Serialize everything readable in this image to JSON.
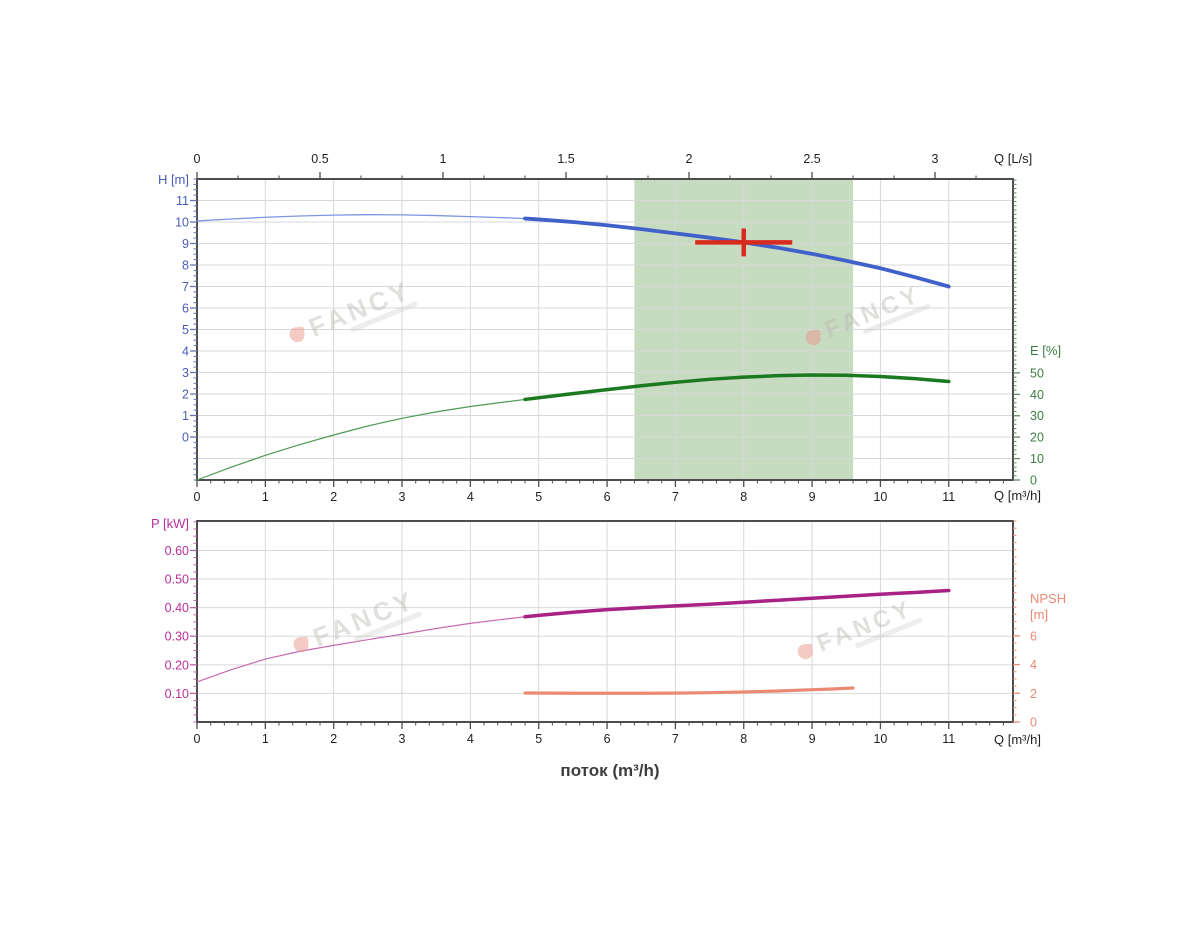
{
  "flow_axis_title": "поток (m³/h)",
  "watermark": {
    "text": "FANCY"
  },
  "chart_data": [
    {
      "type": "line",
      "name": "head-efficiency-chart",
      "x_bottom": {
        "label": "Q [m³/h]",
        "min": 0,
        "max": 11.94,
        "minor_step": 0.2,
        "tick_values": [
          0,
          1,
          2,
          3,
          4,
          5,
          6,
          7,
          8,
          9,
          10,
          11
        ],
        "tick_labels": [
          "0",
          "1",
          "2",
          "3",
          "4",
          "5",
          "6",
          "7",
          "8",
          "9",
          "10",
          "11"
        ],
        "color": "#1f1f1f",
        "tick_color": "#4d4d4d",
        "grid": [
          1,
          2,
          3,
          4,
          5,
          6,
          7,
          8,
          9,
          10,
          11
        ]
      },
      "x_top": {
        "label": "Q [L/s]",
        "min": 0,
        "max": 3.317,
        "minor_step": 0.166667,
        "tick_values": [
          0,
          0.5,
          1,
          1.5,
          2,
          2.5,
          3
        ],
        "tick_labels": [
          "0",
          "0.5",
          "1",
          "1.5",
          "2",
          "2.5",
          "3"
        ],
        "color": "#1f1f1f",
        "tick_color": "#4d4d4d"
      },
      "y_left": {
        "label": "H [m]",
        "min": -2,
        "max": 12,
        "minor_step": 0.25,
        "tick_values": [
          0,
          1,
          2,
          3,
          4,
          5,
          6,
          7,
          8,
          9,
          10,
          11
        ],
        "tick_labels": [
          "0",
          "1",
          "2",
          "3",
          "4",
          "5",
          "6",
          "7",
          "8",
          "9",
          "10",
          "11"
        ],
        "color": "#4a5cb8",
        "tick_color": "#6673b5",
        "grid": [
          -1,
          0,
          1,
          2,
          3,
          4,
          5,
          6,
          7,
          8,
          9,
          10,
          11
        ]
      },
      "y_right": {
        "label": "E [%]",
        "min": 0,
        "max": 140.5,
        "minor_step": 2,
        "tick_values": [
          0,
          10,
          20,
          30,
          40,
          50
        ],
        "tick_labels": [
          "0",
          "10",
          "20",
          "30",
          "40",
          "50"
        ],
        "color": "#3d7d42",
        "tick_color": "#5d8a5d"
      },
      "band": {
        "from": 6.4,
        "to": 9.6,
        "color": "#c7dbc1"
      },
      "series": [
        {
          "name": "head",
          "axis": "left",
          "thick_from": 4.8,
          "color": "#3f61c9",
          "color_thin": "#7d95e0",
          "width": 3.8,
          "width_thin": 1.3,
          "points": [
            [
              0,
              10.05
            ],
            [
              0.5,
              10.14
            ],
            [
              1,
              10.22
            ],
            [
              1.5,
              10.28
            ],
            [
              2,
              10.32
            ],
            [
              2.5,
              10.34
            ],
            [
              3,
              10.33
            ],
            [
              3.5,
              10.3
            ],
            [
              4,
              10.25
            ],
            [
              4.4,
              10.21
            ],
            [
              4.8,
              10.16
            ],
            [
              5,
              10.12
            ],
            [
              5.5,
              10.0
            ],
            [
              6,
              9.85
            ],
            [
              6.5,
              9.67
            ],
            [
              7,
              9.47
            ],
            [
              7.5,
              9.27
            ],
            [
              8,
              9.05
            ],
            [
              8.5,
              8.8
            ],
            [
              9,
              8.52
            ],
            [
              9.5,
              8.2
            ],
            [
              10,
              7.85
            ],
            [
              10.5,
              7.44
            ],
            [
              11,
              7.0
            ]
          ]
        },
        {
          "name": "efficiency",
          "axis": "right",
          "thick_from": 4.8,
          "color": "#1b7a1f",
          "color_thin": "#4e9a52",
          "width": 3.5,
          "width_thin": 1.2,
          "points": [
            [
              0,
              0
            ],
            [
              0.5,
              6
            ],
            [
              1,
              11.5
            ],
            [
              1.5,
              16.5
            ],
            [
              2,
              21
            ],
            [
              2.5,
              25.2
            ],
            [
              3,
              28.8
            ],
            [
              3.5,
              31.8
            ],
            [
              4,
              34.3
            ],
            [
              4.4,
              36
            ],
            [
              4.8,
              37.6
            ],
            [
              5,
              38.4
            ],
            [
              5.5,
              40.3
            ],
            [
              6,
              42.2
            ],
            [
              6.5,
              44
            ],
            [
              7,
              45.6
            ],
            [
              7.5,
              47
            ],
            [
              8,
              48
            ],
            [
              8.5,
              48.7
            ],
            [
              9,
              49
            ],
            [
              9.5,
              48.9
            ],
            [
              10,
              48.3
            ],
            [
              10.5,
              47.3
            ],
            [
              11,
              46
            ]
          ]
        }
      ],
      "duty_point": {
        "q": 8.0,
        "v": 9.05,
        "axis": "left",
        "half_width": 0.71,
        "half_height": 0.65,
        "stroke": 4.5,
        "color": "#d92a1e"
      }
    },
    {
      "type": "line",
      "name": "power-npsh-chart",
      "x_bottom": {
        "label": "Q [m³/h]",
        "min": 0,
        "max": 11.94,
        "minor_step": 0.2,
        "tick_values": [
          0,
          1,
          2,
          3,
          4,
          5,
          6,
          7,
          8,
          9,
          10,
          11
        ],
        "tick_labels": [
          "0",
          "1",
          "2",
          "3",
          "4",
          "5",
          "6",
          "7",
          "8",
          "9",
          "10",
          "11"
        ],
        "color": "#1f1f1f",
        "tick_color": "#4d4d4d",
        "grid": [
          1,
          2,
          3,
          4,
          5,
          6,
          7,
          8,
          9,
          10,
          11
        ]
      },
      "y_left": {
        "label": "P [kW]",
        "min": 0,
        "max": 0.703,
        "minor_step": 0.025,
        "tick_values": [
          0.1,
          0.2,
          0.3,
          0.4,
          0.5,
          0.6
        ],
        "tick_labels": [
          "0.10",
          "0.20",
          "0.30",
          "0.40",
          "0.50",
          "0.60"
        ],
        "color": "#b8309a",
        "tick_color": "#b864a4",
        "grid": [
          0.1,
          0.2,
          0.3,
          0.4,
          0.5,
          0.6
        ]
      },
      "y_right": {
        "label": "NPSH",
        "label2": "[m]",
        "min": 0,
        "max": 14,
        "minor_step": 0.5,
        "tick_values": [
          0,
          2,
          4,
          6
        ],
        "tick_labels": [
          "0",
          "2",
          "4",
          "6"
        ],
        "color": "#ea8a72",
        "tick_color": "#ea8a72"
      },
      "series": [
        {
          "name": "power",
          "axis": "left",
          "thick_from": 4.8,
          "color": "#a82184",
          "color_thin": "#c66bb0",
          "width": 3.5,
          "width_thin": 1.2,
          "points": [
            [
              0,
              0.14
            ],
            [
              0.5,
              0.183
            ],
            [
              1,
              0.22
            ],
            [
              1.5,
              0.247
            ],
            [
              2,
              0.268
            ],
            [
              2.5,
              0.288
            ],
            [
              3,
              0.307
            ],
            [
              3.5,
              0.327
            ],
            [
              4,
              0.345
            ],
            [
              4.4,
              0.357
            ],
            [
              4.8,
              0.368
            ],
            [
              5,
              0.373
            ],
            [
              5.5,
              0.384
            ],
            [
              6,
              0.393
            ],
            [
              6.5,
              0.4
            ],
            [
              7,
              0.406
            ],
            [
              7.5,
              0.412
            ],
            [
              8,
              0.419
            ],
            [
              8.5,
              0.426
            ],
            [
              9,
              0.433
            ],
            [
              9.5,
              0.44
            ],
            [
              10,
              0.447
            ],
            [
              10.5,
              0.453
            ],
            [
              11,
              0.46
            ]
          ]
        },
        {
          "name": "npsh",
          "axis": "right",
          "thick_from": 4.7,
          "color": "#ea8a72",
          "color_thin": "#ea8a72",
          "width": 3.2,
          "width_thin": 0,
          "points": [
            [
              4.8,
              2.02
            ],
            [
              5.5,
              2.0
            ],
            [
              6,
              2.0
            ],
            [
              6.5,
              2.0
            ],
            [
              7,
              2.01
            ],
            [
              7.5,
              2.04
            ],
            [
              8,
              2.09
            ],
            [
              8.5,
              2.16
            ],
            [
              9,
              2.25
            ],
            [
              9.3,
              2.3
            ],
            [
              9.6,
              2.37
            ]
          ]
        }
      ]
    }
  ]
}
